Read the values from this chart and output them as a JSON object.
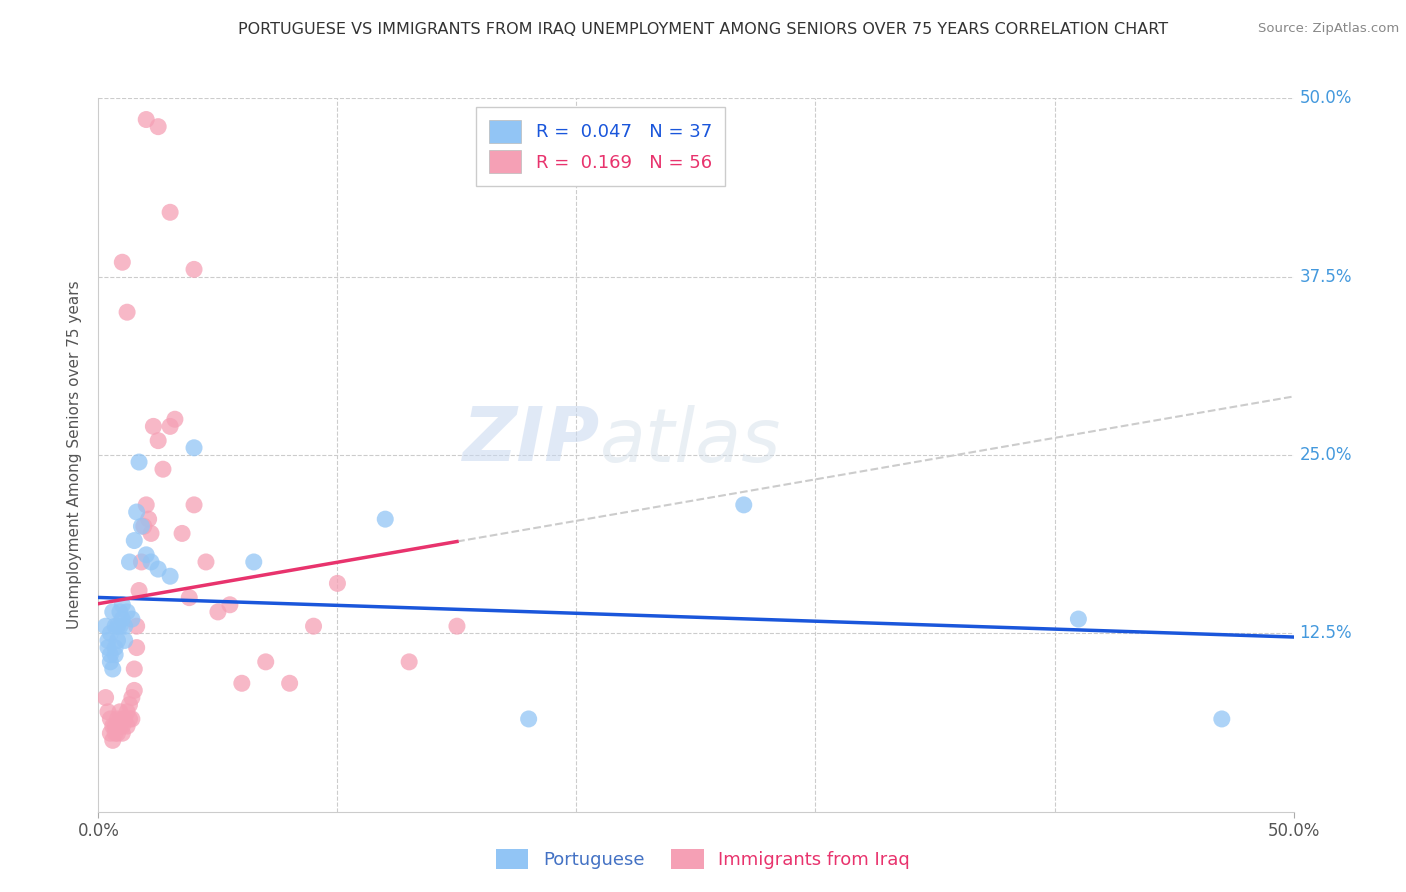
{
  "title": "PORTUGUESE VS IMMIGRANTS FROM IRAQ UNEMPLOYMENT AMONG SENIORS OVER 75 YEARS CORRELATION CHART",
  "source": "Source: ZipAtlas.com",
  "ylabel": "Unemployment Among Seniors over 75 years",
  "xlim": [
    0.0,
    0.5
  ],
  "ylim": [
    0.0,
    0.5
  ],
  "yticks": [
    0.125,
    0.25,
    0.375,
    0.5
  ],
  "ytick_labels": [
    "12.5%",
    "25.0%",
    "37.5%",
    "50.0%"
  ],
  "portuguese_color": "#92c5f5",
  "iraq_color": "#f5a0b5",
  "portuguese_line_color": "#1a56db",
  "iraq_line_color": "#e8336d",
  "watermark_zip": "ZIP",
  "watermark_atlas": "atlas",
  "background_color": "#ffffff",
  "portuguese_x": [
    0.003,
    0.004,
    0.004,
    0.005,
    0.005,
    0.005,
    0.006,
    0.006,
    0.007,
    0.007,
    0.007,
    0.008,
    0.008,
    0.009,
    0.009,
    0.01,
    0.01,
    0.011,
    0.011,
    0.012,
    0.013,
    0.014,
    0.015,
    0.016,
    0.017,
    0.018,
    0.02,
    0.022,
    0.025,
    0.03,
    0.04,
    0.065,
    0.12,
    0.18,
    0.27,
    0.41,
    0.47
  ],
  "portuguese_y": [
    0.13,
    0.115,
    0.12,
    0.105,
    0.11,
    0.125,
    0.1,
    0.14,
    0.13,
    0.115,
    0.11,
    0.13,
    0.12,
    0.14,
    0.13,
    0.145,
    0.135,
    0.12,
    0.13,
    0.14,
    0.175,
    0.135,
    0.19,
    0.21,
    0.245,
    0.2,
    0.18,
    0.175,
    0.17,
    0.165,
    0.255,
    0.175,
    0.205,
    0.065,
    0.215,
    0.135,
    0.065
  ],
  "iraq_x": [
    0.003,
    0.004,
    0.005,
    0.005,
    0.006,
    0.006,
    0.007,
    0.007,
    0.008,
    0.008,
    0.009,
    0.009,
    0.01,
    0.01,
    0.01,
    0.011,
    0.012,
    0.012,
    0.013,
    0.013,
    0.014,
    0.014,
    0.015,
    0.015,
    0.016,
    0.016,
    0.017,
    0.018,
    0.019,
    0.02,
    0.021,
    0.022,
    0.023,
    0.025,
    0.027,
    0.03,
    0.032,
    0.035,
    0.038,
    0.04,
    0.045,
    0.05,
    0.055,
    0.06,
    0.07,
    0.08,
    0.09,
    0.1,
    0.13,
    0.15,
    0.01,
    0.012,
    0.02,
    0.025,
    0.03,
    0.04
  ],
  "iraq_y": [
    0.08,
    0.07,
    0.065,
    0.055,
    0.06,
    0.05,
    0.06,
    0.055,
    0.065,
    0.055,
    0.07,
    0.06,
    0.065,
    0.06,
    0.055,
    0.065,
    0.07,
    0.06,
    0.075,
    0.065,
    0.08,
    0.065,
    0.1,
    0.085,
    0.13,
    0.115,
    0.155,
    0.175,
    0.2,
    0.215,
    0.205,
    0.195,
    0.27,
    0.26,
    0.24,
    0.27,
    0.275,
    0.195,
    0.15,
    0.215,
    0.175,
    0.14,
    0.145,
    0.09,
    0.105,
    0.09,
    0.13,
    0.16,
    0.105,
    0.13,
    0.385,
    0.35,
    0.485,
    0.48,
    0.42,
    0.38
  ]
}
